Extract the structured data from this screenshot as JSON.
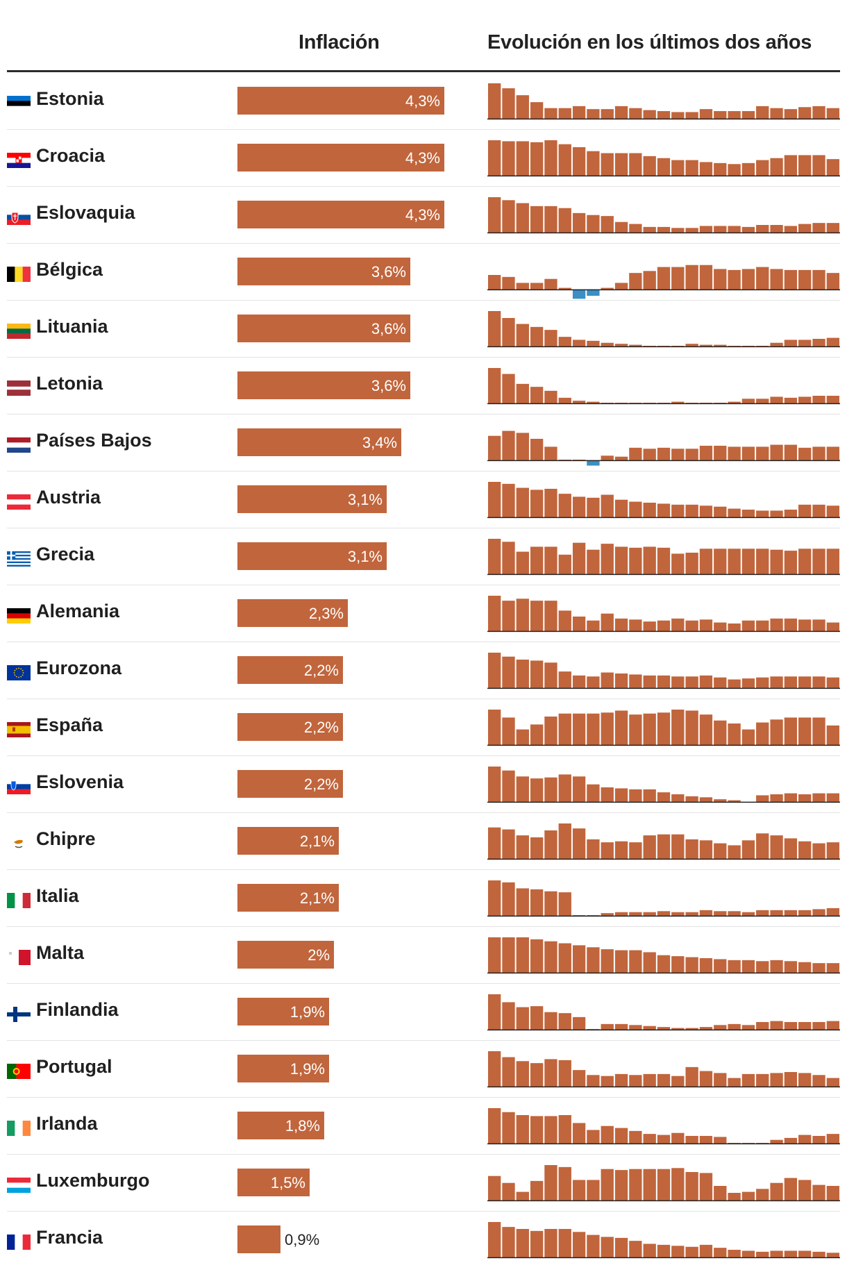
{
  "headers": {
    "inflation": "Inflación",
    "evolution": "Evolución en los últimos dos años"
  },
  "chart_data": {
    "type": "bar",
    "title": "Inflación",
    "xmax": 4.3,
    "sparkline_title": "Evolución en los últimos dos años",
    "sparkline_range": [
      -0.6,
      3.6
    ],
    "rows": [
      {
        "country": "Estonia",
        "flag": "estonia-flag",
        "value": 4.3,
        "label": "4,3%",
        "colors": [
          "#0072ce",
          "#000000",
          "#ffffff"
        ],
        "history": [
          3.6,
          3.1,
          2.4,
          1.7,
          1.1,
          1.1,
          1.3,
          1.0,
          1.0,
          1.3,
          1.1,
          0.9,
          0.8,
          0.7,
          0.7,
          1.0,
          0.8,
          0.8,
          0.8,
          1.3,
          1.1,
          1.0,
          1.2,
          1.3,
          1.1
        ]
      },
      {
        "country": "Croacia",
        "flag": "croatia-flag",
        "value": 4.3,
        "label": "4,3%",
        "colors": [
          "#ff0000",
          "#ffffff",
          "#171796"
        ],
        "history": [
          3.6,
          3.5,
          3.5,
          3.4,
          3.6,
          3.2,
          2.9,
          2.5,
          2.3,
          2.3,
          2.3,
          2.0,
          1.8,
          1.6,
          1.6,
          1.4,
          1.3,
          1.2,
          1.3,
          1.6,
          1.8,
          2.1,
          2.1,
          2.1,
          1.7
        ]
      },
      {
        "country": "Eslovaquia",
        "flag": "slovakia-flag",
        "value": 4.3,
        "label": "4,3%",
        "colors": [
          "#ffffff",
          "#0b4ea2",
          "#ee1c25"
        ],
        "history": [
          3.6,
          3.3,
          3.0,
          2.7,
          2.7,
          2.5,
          2.0,
          1.8,
          1.7,
          1.1,
          0.9,
          0.6,
          0.6,
          0.5,
          0.5,
          0.7,
          0.7,
          0.7,
          0.6,
          0.8,
          0.8,
          0.7,
          0.9,
          1.0,
          1.0
        ]
      },
      {
        "country": "Bélgica",
        "flag": "belgium-flag",
        "value": 3.6,
        "label": "3,6%",
        "colors": [
          "#000000",
          "#fdda24",
          "#ef3340"
        ],
        "history": [
          1.5,
          1.3,
          0.7,
          0.7,
          1.1,
          0.2,
          -0.9,
          -0.6,
          0.2,
          0.7,
          1.7,
          1.9,
          2.3,
          2.3,
          2.5,
          2.5,
          2.1,
          2.0,
          2.1,
          2.3,
          2.1,
          2.0,
          2.0,
          2.0,
          1.7
        ]
      },
      {
        "country": "Lituania",
        "flag": "lithuania-flag",
        "value": 3.6,
        "label": "3,6%",
        "colors": [
          "#fdb913",
          "#006a44",
          "#c1272d"
        ],
        "history": [
          3.6,
          2.9,
          2.3,
          2.0,
          1.7,
          1.0,
          0.7,
          0.6,
          0.4,
          0.3,
          0.2,
          0.1,
          0.1,
          0.1,
          0.3,
          0.2,
          0.2,
          0.1,
          0.1,
          0.1,
          0.4,
          0.7,
          0.7,
          0.8,
          0.9
        ]
      },
      {
        "country": "Letonia",
        "flag": "latvia-flag",
        "value": 3.6,
        "label": "3,6%",
        "colors": [
          "#9e3039",
          "#ffffff",
          "#9e3039"
        ],
        "history": [
          3.6,
          3.0,
          2.0,
          1.7,
          1.3,
          0.6,
          0.3,
          0.2,
          0.1,
          0.1,
          0.1,
          0.1,
          0.1,
          0.2,
          0.1,
          0.1,
          0.1,
          0.2,
          0.5,
          0.5,
          0.7,
          0.6,
          0.7,
          0.8,
          0.8
        ]
      },
      {
        "country": "Países Bajos",
        "flag": "netherlands-flag",
        "value": 3.4,
        "label": "3,4%",
        "colors": [
          "#ae1c28",
          "#ffffff",
          "#21468b"
        ],
        "history": [
          2.5,
          3.0,
          2.8,
          2.2,
          1.4,
          0.1,
          0.1,
          -0.5,
          0.5,
          0.4,
          1.3,
          1.2,
          1.3,
          1.2,
          1.2,
          1.5,
          1.5,
          1.4,
          1.4,
          1.4,
          1.6,
          1.6,
          1.3,
          1.4,
          1.4
        ]
      },
      {
        "country": "Austria",
        "flag": "austria-flag",
        "value": 3.1,
        "label": "3,1%",
        "colors": [
          "#ed2939",
          "#ffffff",
          "#ed2939"
        ],
        "history": [
          3.6,
          3.4,
          3.0,
          2.8,
          2.9,
          2.4,
          2.1,
          2.0,
          2.3,
          1.8,
          1.6,
          1.5,
          1.4,
          1.3,
          1.3,
          1.2,
          1.1,
          0.9,
          0.8,
          0.7,
          0.7,
          0.8,
          1.3,
          1.3,
          1.2
        ]
      },
      {
        "country": "Grecia",
        "flag": "greece-flag",
        "value": 3.1,
        "label": "3,1%",
        "colors": [
          "#0d5eaf",
          "#ffffff"
        ],
        "history": [
          3.6,
          3.3,
          2.3,
          2.8,
          2.8,
          2.0,
          3.2,
          2.5,
          3.1,
          2.8,
          2.7,
          2.8,
          2.7,
          2.1,
          2.2,
          2.6,
          2.6,
          2.6,
          2.6,
          2.6,
          2.5,
          2.4,
          2.6,
          2.6,
          2.6
        ]
      },
      {
        "country": "Alemania",
        "flag": "germany-flag",
        "value": 2.3,
        "label": "2,3%",
        "colors": [
          "#000000",
          "#dd0000",
          "#ffce00"
        ],
        "history": [
          3.6,
          3.1,
          3.3,
          3.1,
          3.1,
          2.1,
          1.5,
          1.1,
          1.8,
          1.3,
          1.2,
          1.0,
          1.1,
          1.3,
          1.1,
          1.2,
          0.9,
          0.8,
          1.1,
          1.1,
          1.3,
          1.3,
          1.2,
          1.2,
          0.9
        ]
      },
      {
        "country": "Eurozona",
        "flag": "eu-flag",
        "value": 2.2,
        "label": "2,2%",
        "colors": [
          "#003399",
          "#ffcc00"
        ],
        "history": [
          3.6,
          3.2,
          2.9,
          2.8,
          2.6,
          1.7,
          1.3,
          1.2,
          1.6,
          1.5,
          1.4,
          1.3,
          1.3,
          1.2,
          1.2,
          1.3,
          1.1,
          0.9,
          1.0,
          1.1,
          1.2,
          1.2,
          1.2,
          1.2,
          1.1
        ]
      },
      {
        "country": "España",
        "flag": "spain-flag",
        "value": 2.2,
        "label": "2,2%",
        "colors": [
          "#aa151b",
          "#f1bf00"
        ],
        "history": [
          3.6,
          2.8,
          1.6,
          2.1,
          2.9,
          3.2,
          3.2,
          3.2,
          3.3,
          3.5,
          3.1,
          3.2,
          3.3,
          3.6,
          3.5,
          3.1,
          2.5,
          2.2,
          1.6,
          2.3,
          2.6,
          2.8,
          2.8,
          2.8,
          2.0
        ]
      },
      {
        "country": "Eslovenia",
        "flag": "slovenia-flag",
        "value": 2.2,
        "label": "2,2%",
        "colors": [
          "#ffffff",
          "#003da5",
          "#ed1c24",
          "#005ce5"
        ],
        "history": [
          3.6,
          3.2,
          2.6,
          2.4,
          2.5,
          2.8,
          2.6,
          1.8,
          1.5,
          1.4,
          1.3,
          1.3,
          1.0,
          0.8,
          0.6,
          0.5,
          0.3,
          0.2,
          0.0,
          0.7,
          0.8,
          0.9,
          0.8,
          0.9,
          0.9
        ]
      },
      {
        "country": "Chipre",
        "flag": "cyprus-flag",
        "value": 2.1,
        "label": "2,1%",
        "colors": [
          "#ffffff",
          "#d57800",
          "#4e5b31"
        ],
        "history": [
          3.2,
          3.0,
          2.4,
          2.2,
          2.9,
          3.6,
          3.1,
          2.0,
          1.7,
          1.8,
          1.7,
          2.4,
          2.5,
          2.5,
          2.0,
          1.9,
          1.6,
          1.4,
          1.9,
          2.6,
          2.4,
          2.1,
          1.8,
          1.6,
          1.7
        ]
      },
      {
        "country": "Italia",
        "flag": "italy-flag",
        "value": 2.1,
        "label": "2,1%",
        "colors": [
          "#009246",
          "#ffffff",
          "#ce2b37"
        ],
        "history": [
          3.6,
          3.4,
          2.8,
          2.7,
          2.5,
          2.4,
          0.1,
          0.1,
          0.3,
          0.4,
          0.4,
          0.4,
          0.5,
          0.4,
          0.4,
          0.6,
          0.5,
          0.5,
          0.4,
          0.6,
          0.6,
          0.6,
          0.6,
          0.7,
          0.8
        ]
      },
      {
        "country": "Malta",
        "flag": "malta-flag",
        "value": 2.0,
        "label": "2%",
        "colors": [
          "#ffffff",
          "#cf142b"
        ],
        "history": [
          3.6,
          3.6,
          3.6,
          3.4,
          3.2,
          3.0,
          2.8,
          2.6,
          2.4,
          2.3,
          2.3,
          2.1,
          1.8,
          1.7,
          1.6,
          1.5,
          1.4,
          1.3,
          1.3,
          1.2,
          1.3,
          1.2,
          1.1,
          1.0,
          1.0
        ]
      },
      {
        "country": "Finlandia",
        "flag": "finland-flag",
        "value": 1.9,
        "label": "1,9%",
        "colors": [
          "#ffffff",
          "#003580"
        ],
        "history": [
          3.6,
          2.8,
          2.3,
          2.4,
          1.8,
          1.7,
          1.3,
          0.1,
          0.6,
          0.6,
          0.5,
          0.4,
          0.3,
          0.2,
          0.2,
          0.3,
          0.5,
          0.6,
          0.5,
          0.8,
          0.9,
          0.8,
          0.8,
          0.8,
          0.9
        ]
      },
      {
        "country": "Portugal",
        "flag": "portugal-flag",
        "value": 1.9,
        "label": "1,9%",
        "colors": [
          "#006600",
          "#ff0000",
          "#ffcc00"
        ],
        "history": [
          3.6,
          3.0,
          2.6,
          2.4,
          2.8,
          2.7,
          1.7,
          1.2,
          1.1,
          1.3,
          1.2,
          1.3,
          1.3,
          1.1,
          2.0,
          1.6,
          1.4,
          0.9,
          1.3,
          1.3,
          1.4,
          1.5,
          1.4,
          1.2,
          0.9
        ]
      },
      {
        "country": "Irlanda",
        "flag": "ireland-flag",
        "value": 1.8,
        "label": "1,8%",
        "colors": [
          "#169b62",
          "#ffffff",
          "#ff883e"
        ],
        "history": [
          3.6,
          3.2,
          2.9,
          2.8,
          2.8,
          2.9,
          2.1,
          1.4,
          1.8,
          1.6,
          1.3,
          1.0,
          0.9,
          1.1,
          0.8,
          0.8,
          0.7,
          0.1,
          0.1,
          0.1,
          0.4,
          0.6,
          0.9,
          0.8,
          1.0
        ]
      },
      {
        "country": "Luxemburgo",
        "flag": "luxembourg-flag",
        "value": 1.5,
        "label": "1,5%",
        "colors": [
          "#ed2939",
          "#ffffff",
          "#00a1de"
        ],
        "history": [
          2.5,
          1.8,
          0.9,
          2.0,
          3.6,
          3.4,
          2.1,
          2.1,
          3.2,
          3.1,
          3.2,
          3.2,
          3.2,
          3.3,
          2.9,
          2.8,
          1.5,
          0.8,
          0.9,
          1.2,
          1.8,
          2.3,
          2.1,
          1.6,
          1.5
        ]
      },
      {
        "country": "Francia",
        "flag": "france-flag",
        "value": 0.9,
        "label": "0,9%",
        "colors": [
          "#002395",
          "#ffffff",
          "#ed2939"
        ],
        "history": [
          3.6,
          3.1,
          2.9,
          2.7,
          2.9,
          2.9,
          2.6,
          2.3,
          2.1,
          2.0,
          1.7,
          1.4,
          1.3,
          1.2,
          1.1,
          1.3,
          1.0,
          0.8,
          0.7,
          0.6,
          0.7,
          0.7,
          0.7,
          0.6,
          0.5
        ]
      }
    ]
  }
}
